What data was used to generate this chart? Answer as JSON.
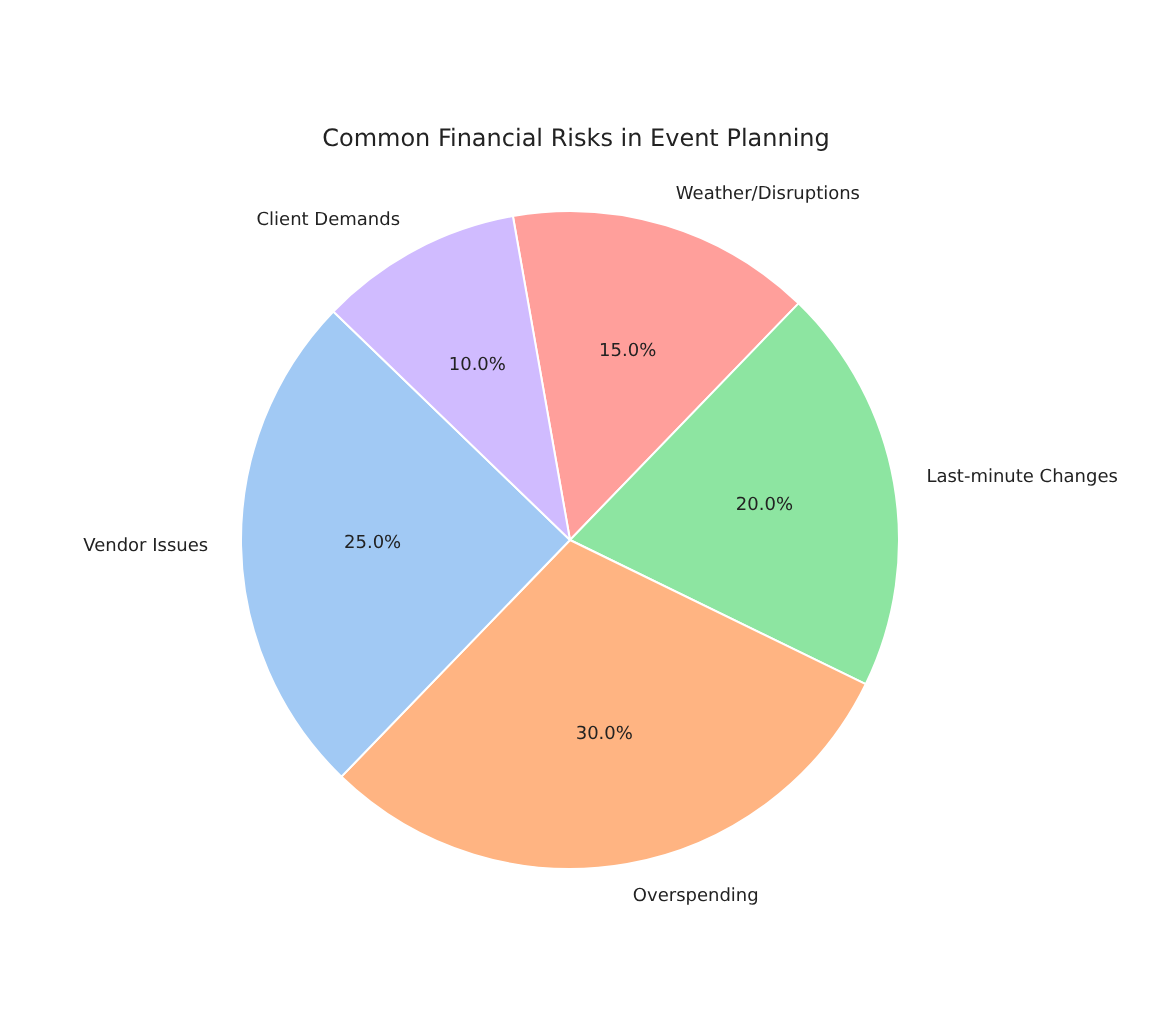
{
  "chart_data": {
    "type": "pie",
    "title": "Common Financial Risks in Event Planning",
    "categories": [
      "Weather/Disruptions",
      "Last-minute Changes",
      "Overspending",
      "Vendor Issues",
      "Client Demands"
    ],
    "values": [
      15,
      20,
      30,
      25,
      10
    ],
    "colors": [
      "#ff9f9b",
      "#8de5a1",
      "#ffb482",
      "#a1c9f4",
      "#d0bbff"
    ],
    "value_labels": [
      "15.0%",
      "20.0%",
      "30.0%",
      "25.0%",
      "10.0%"
    ],
    "legend": false
  }
}
